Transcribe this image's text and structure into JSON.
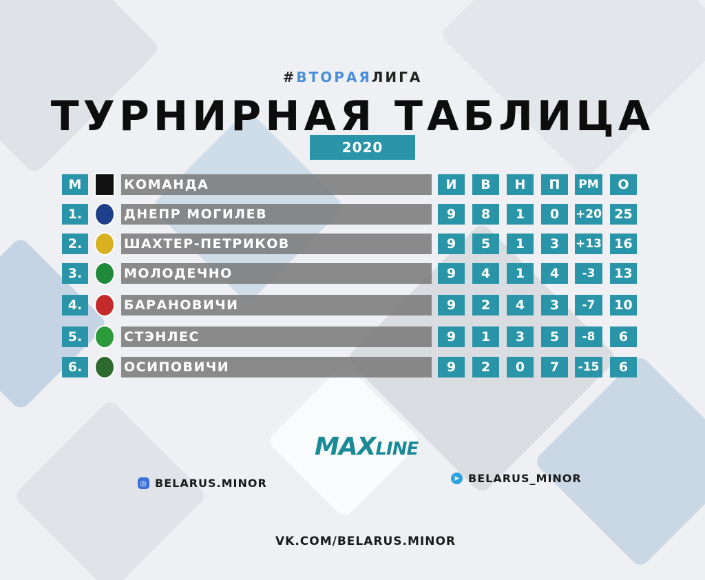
{
  "hashtag": {
    "prefix": "#",
    "blue": "ВТОРАЯ",
    "dark": "ЛИГА"
  },
  "title": "ТУРНИРНАЯ ТАБЛИЦА",
  "year": "2020",
  "header": {
    "pos": "М",
    "team": "КОМАНДА",
    "cols": [
      "И",
      "В",
      "Н",
      "П",
      "РМ",
      "О"
    ]
  },
  "rows": [
    {
      "pos": "1.",
      "team": "ДНЕПР МОГИЛЕВ",
      "logo_color": "#1e3f8a",
      "stats": [
        "9",
        "8",
        "1",
        "0",
        "+20",
        "25"
      ]
    },
    {
      "pos": "2.",
      "team": "ШАХТЕР-ПЕТРИКОВ",
      "logo_color": "#d8b020",
      "stats": [
        "9",
        "5",
        "1",
        "3",
        "+13",
        "16"
      ]
    },
    {
      "pos": "3.",
      "team": "МОЛОДЕЧНО",
      "logo_color": "#1f8a3a",
      "stats": [
        "9",
        "4",
        "1",
        "4",
        "-3",
        "13"
      ]
    },
    {
      "pos": "4.",
      "team": "БАРАНОВИЧИ",
      "logo_color": "#c42a2a",
      "stats": [
        "9",
        "2",
        "4",
        "3",
        "-7",
        "10"
      ]
    },
    {
      "pos": "5.",
      "team": "СТЭНЛЕС",
      "logo_color": "#2a9a3a",
      "stats": [
        "9",
        "1",
        "3",
        "5",
        "-8",
        "6"
      ]
    },
    {
      "pos": "6.",
      "team": "ОСИПОВИЧИ",
      "logo_color": "#2d6a2d",
      "stats": [
        "9",
        "2",
        "0",
        "7",
        "-15",
        "6"
      ]
    }
  ],
  "sponsor": {
    "max": "MAX",
    "line": "LINE"
  },
  "instagram": "BELARUS.MINOR",
  "telegram": "BELARUS_MINOR",
  "vk": "VK.COM/BELARUS.MINOR",
  "colors": {
    "accent": "#2a95a8",
    "bar": "#787878"
  }
}
